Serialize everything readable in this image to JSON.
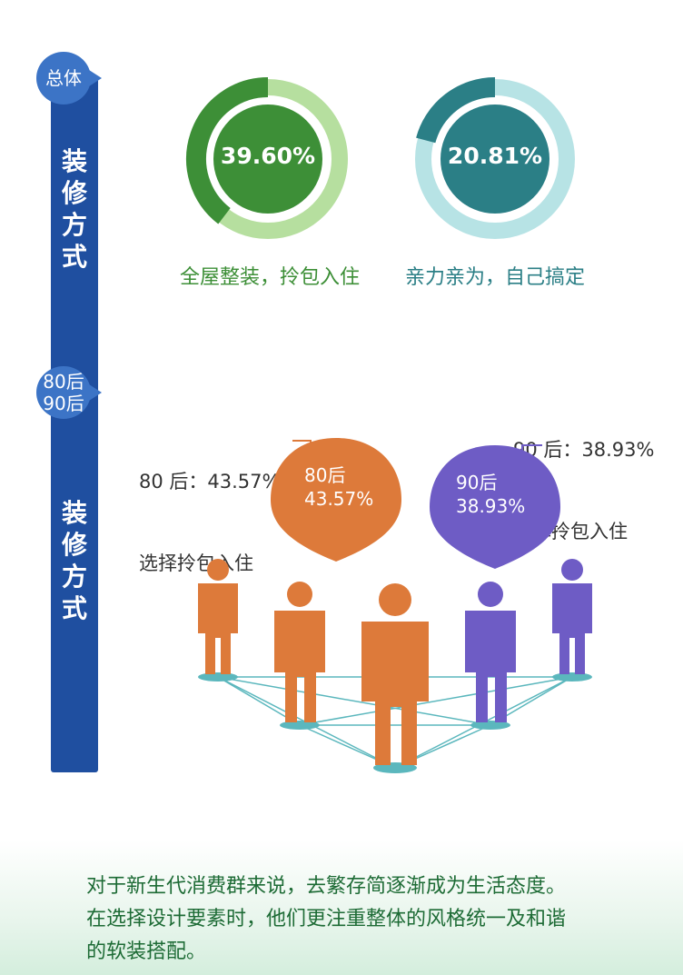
{
  "sidebar": {
    "sections": [
      {
        "badge": "总体",
        "title": "装修方式"
      },
      {
        "badge_line1": "80后",
        "badge_line2": "90后",
        "title": "装修方式"
      }
    ]
  },
  "rings": [
    {
      "value_label": "39.60%",
      "value": 39.6,
      "caption": "全屋整装，拎包入住",
      "color": "#3d8f37",
      "track": "#b6df9f",
      "text_color": "#3d8f37"
    },
    {
      "value_label": "20.81%",
      "value": 20.81,
      "caption": "亲力亲为，自己搞定",
      "color": "#2b7f86",
      "track": "#b7e3e5",
      "text_color": "#2b7f86"
    }
  ],
  "generations": [
    {
      "pin_line1": "80后",
      "pin_line2": "43.57%",
      "callout_line1": "80 后：43.57%",
      "callout_line2": "选择拎包入住",
      "color": "#dd7a3a"
    },
    {
      "pin_line1": "90后",
      "pin_line2": "38.93%",
      "callout_line1": "90 后：38.93%",
      "callout_line2": "选择拎包入住",
      "color": "#6e5cc5"
    }
  ],
  "chart_data": [
    {
      "type": "pie",
      "categories": [
        "全屋整装，拎包入住"
      ],
      "values": [
        39.6
      ]
    },
    {
      "type": "pie",
      "categories": [
        "亲力亲为，自己搞定"
      ],
      "values": [
        20.81
      ]
    },
    {
      "type": "bar",
      "categories": [
        "80后",
        "90后"
      ],
      "values": [
        43.57,
        38.93
      ]
    }
  ],
  "footer": {
    "line1": "对于新生代消费群来说，去繁存简逐渐成为生活态度。",
    "line2": "在选择设计要素时，他们更注重整体的风格统一及和谐",
    "line3": "的软装搭配。"
  }
}
